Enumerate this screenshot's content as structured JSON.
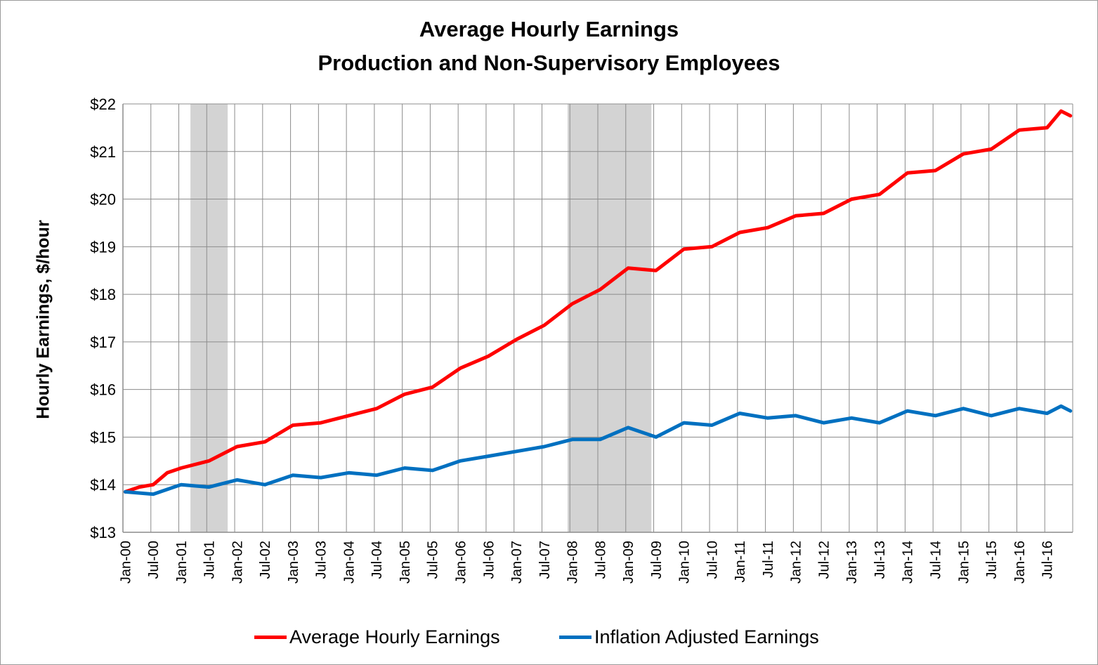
{
  "chart_data": {
    "type": "line",
    "title": "Average Hourly Earnings",
    "subtitle": "Production and Non-Supervisory Employees",
    "ylabel": "Hourly Earnings, $/hour",
    "ylim": [
      13,
      22
    ],
    "yticks": [
      "$13",
      "$14",
      "$15",
      "$16",
      "$17",
      "$18",
      "$19",
      "$20",
      "$21",
      "$22"
    ],
    "x_start": "Jan-00",
    "x_end": "Dec-16",
    "xticks": [
      "Jan-00",
      "Jul-00",
      "Jan-01",
      "Jul-01",
      "Jan-02",
      "Jul-02",
      "Jan-03",
      "Jul-03",
      "Jan-04",
      "Jul-04",
      "Jan-05",
      "Jul-05",
      "Jan-06",
      "Jul-06",
      "Jan-07",
      "Jul-07",
      "Jan-08",
      "Jul-08",
      "Jan-09",
      "Jul-09",
      "Jan-10",
      "Jul-10",
      "Jan-11",
      "Jul-11",
      "Jan-12",
      "Jul-12",
      "Jan-13",
      "Jul-13",
      "Jan-14",
      "Jul-14",
      "Jan-15",
      "Jul-15",
      "Jan-16",
      "Jul-16"
    ],
    "recessions": [
      [
        "Mar-01",
        "Nov-01"
      ],
      [
        "Dec-07",
        "Jun-09"
      ]
    ],
    "grid": true,
    "legend_position": "bottom",
    "series": [
      {
        "name": "Average Hourly Earnings",
        "color": "#ff0000",
        "anchors": [
          [
            "Jan-00",
            13.85
          ],
          [
            "Apr-00",
            13.95
          ],
          [
            "Jul-00",
            14.0
          ],
          [
            "Oct-00",
            14.25
          ],
          [
            "Jan-01",
            14.35
          ],
          [
            "Jul-01",
            14.5
          ],
          [
            "Jan-02",
            14.8
          ],
          [
            "Jul-02",
            14.9
          ],
          [
            "Jan-03",
            15.25
          ],
          [
            "Jul-03",
            15.3
          ],
          [
            "Jan-04",
            15.45
          ],
          [
            "Jul-04",
            15.6
          ],
          [
            "Jan-05",
            15.9
          ],
          [
            "Jul-05",
            16.05
          ],
          [
            "Jan-06",
            16.45
          ],
          [
            "Jul-06",
            16.7
          ],
          [
            "Jan-07",
            17.05
          ],
          [
            "Jul-07",
            17.35
          ],
          [
            "Jan-08",
            17.8
          ],
          [
            "Jul-08",
            18.1
          ],
          [
            "Jan-09",
            18.55
          ],
          [
            "Jul-09",
            18.5
          ],
          [
            "Jan-10",
            18.95
          ],
          [
            "Jul-10",
            19.0
          ],
          [
            "Jan-11",
            19.3
          ],
          [
            "Jul-11",
            19.4
          ],
          [
            "Jan-12",
            19.65
          ],
          [
            "Jul-12",
            19.7
          ],
          [
            "Jan-13",
            20.0
          ],
          [
            "Jul-13",
            20.1
          ],
          [
            "Jan-14",
            20.55
          ],
          [
            "Jul-14",
            20.6
          ],
          [
            "Jan-15",
            20.95
          ],
          [
            "Jul-15",
            21.05
          ],
          [
            "Jan-16",
            21.45
          ],
          [
            "Jul-16",
            21.5
          ],
          [
            "Oct-16",
            21.85
          ],
          [
            "Dec-16",
            21.75
          ]
        ]
      },
      {
        "name": "Inflation Adjusted Earnings",
        "color": "#0070c0",
        "anchors": [
          [
            "Jan-00",
            13.85
          ],
          [
            "Jul-00",
            13.8
          ],
          [
            "Jan-01",
            14.0
          ],
          [
            "Jul-01",
            13.95
          ],
          [
            "Jan-02",
            14.1
          ],
          [
            "Jul-02",
            14.0
          ],
          [
            "Jan-03",
            14.2
          ],
          [
            "Jul-03",
            14.15
          ],
          [
            "Jan-04",
            14.25
          ],
          [
            "Jul-04",
            14.2
          ],
          [
            "Jan-05",
            14.35
          ],
          [
            "Jul-05",
            14.3
          ],
          [
            "Jan-06",
            14.5
          ],
          [
            "Jul-06",
            14.6
          ],
          [
            "Jan-07",
            14.7
          ],
          [
            "Jul-07",
            14.8
          ],
          [
            "Jan-08",
            14.95
          ],
          [
            "Jul-08",
            14.95
          ],
          [
            "Jan-09",
            15.2
          ],
          [
            "Jul-09",
            15.0
          ],
          [
            "Jan-10",
            15.3
          ],
          [
            "Jul-10",
            15.25
          ],
          [
            "Jan-11",
            15.5
          ],
          [
            "Jul-11",
            15.4
          ],
          [
            "Jan-12",
            15.45
          ],
          [
            "Jul-12",
            15.3
          ],
          [
            "Jan-13",
            15.4
          ],
          [
            "Jul-13",
            15.3
          ],
          [
            "Jan-14",
            15.55
          ],
          [
            "Jul-14",
            15.45
          ],
          [
            "Jan-15",
            15.6
          ],
          [
            "Jul-15",
            15.45
          ],
          [
            "Jan-16",
            15.6
          ],
          [
            "Jul-16",
            15.5
          ],
          [
            "Oct-16",
            15.65
          ],
          [
            "Dec-16",
            15.55
          ]
        ]
      }
    ]
  }
}
